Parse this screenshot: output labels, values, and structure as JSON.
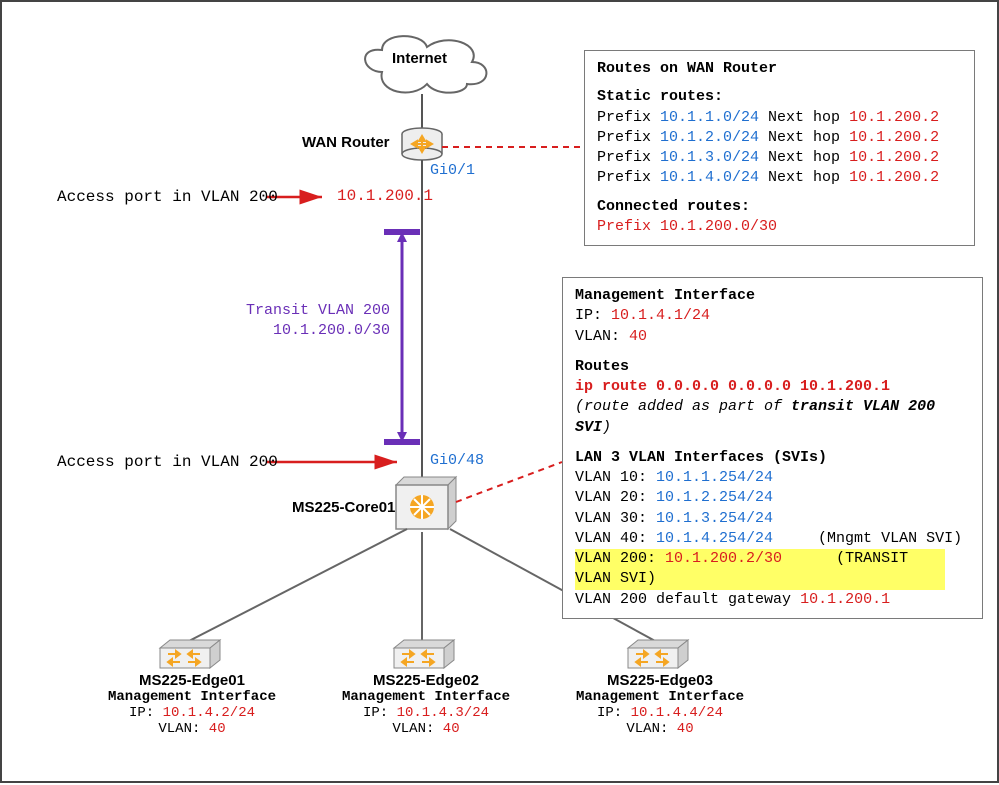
{
  "internet_label": "Internet",
  "wan_router_label": "WAN Router",
  "gi01": "Gi0/1",
  "gi01_ip": "10.1.200.1",
  "access_port_text": "Access port in VLAN 200",
  "transit_vlan_line1": "Transit VLAN 200",
  "transit_vlan_line2": "10.1.200.0/30",
  "gi048": "Gi0/48",
  "core_label": "MS225-Core01",
  "wan_box": {
    "title": "Routes on WAN Router",
    "static_title": "Static routes:",
    "rows": [
      {
        "p": "10.1.1.0/24",
        "n": "10.1.200.2"
      },
      {
        "p": "10.1.2.0/24",
        "n": "10.1.200.2"
      },
      {
        "p": "10.1.3.0/24",
        "n": "10.1.200.2"
      },
      {
        "p": "10.1.4.0/24",
        "n": "10.1.200.2"
      }
    ],
    "connected_title": "Connected routes:",
    "connected_prefix": "Prefix 10.1.200.0/30"
  },
  "core_box": {
    "mgmt_title": "Management Interface",
    "mgmt_ip": "10.1.4.1/24",
    "mgmt_vlan": "40",
    "routes_title": "Routes",
    "route_line": "ip route 0.0.0.0 0.0.0.0 10.1.200.1",
    "route_note": "(route added as part of transit VLAN 200 SVI)",
    "svi_title": "LAN 3 VLAN Interfaces (SVIs)",
    "svis": [
      {
        "v": "VLAN 10:",
        "ip": "10.1.1.254/24",
        "note": ""
      },
      {
        "v": "VLAN 20:",
        "ip": "10.1.2.254/24",
        "note": ""
      },
      {
        "v": "VLAN 30:",
        "ip": "10.1.3.254/24",
        "note": ""
      },
      {
        "v": "VLAN 40:",
        "ip": "10.1.4.254/24",
        "note": "(Mngmt VLAN SVI)"
      }
    ],
    "vlan200_v": "VLAN 200:",
    "vlan200_ip": "10.1.200.2/30",
    "vlan200_note": "(TRANSIT VLAN SVI)",
    "vlan200_gw": "VLAN 200 default gateway",
    "vlan200_gw_ip": "10.1.200.1"
  },
  "edges": [
    {
      "name": "MS225-Edge01",
      "ip": "10.1.4.2/24",
      "vlan": "40"
    },
    {
      "name": "MS225-Edge02",
      "ip": "10.1.4.3/24",
      "vlan": "40"
    },
    {
      "name": "MS225-Edge03",
      "ip": "10.1.4.4/24",
      "vlan": "40"
    }
  ],
  "mgmt_if_label": "Management Interface",
  "ip_label": "IP:",
  "vlan_label": "VLAN:"
}
